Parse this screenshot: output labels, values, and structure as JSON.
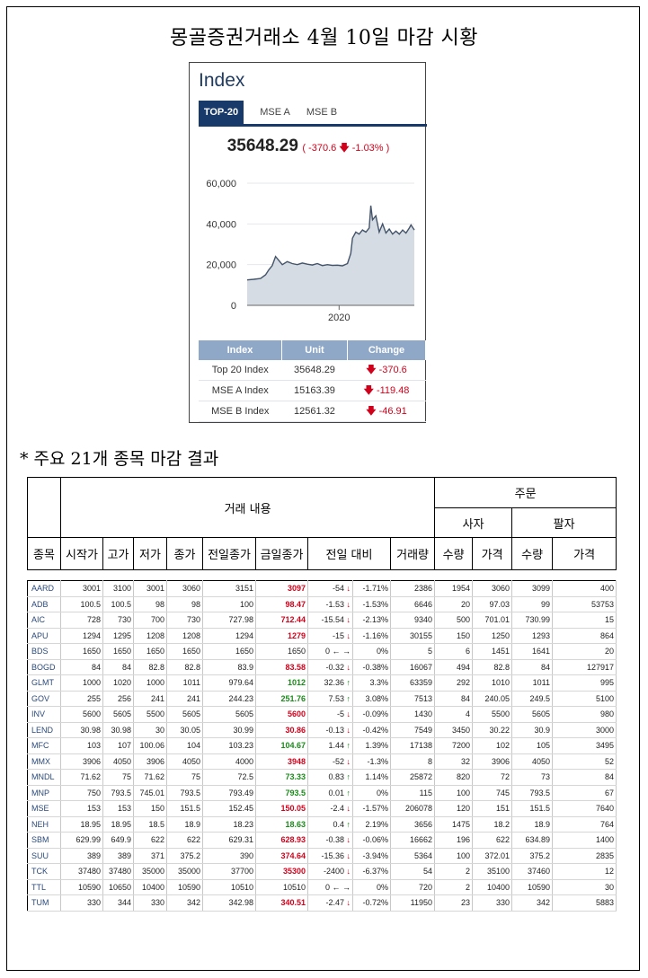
{
  "title": "몽골증권거래소 4월 10일 마감 시황",
  "widget": {
    "title": "Index",
    "tabs": [
      "TOP-20",
      "MSE A",
      "MSE B"
    ],
    "active_tab": "TOP-20",
    "index_value": "35648.29",
    "index_change": "( -370.6 ",
    "index_change_pct": " -1.03% )",
    "table_headers": [
      "Index",
      "Unit",
      "Change"
    ],
    "table_rows": [
      {
        "name": "Top 20 Index",
        "unit": "35648.29",
        "change": "-370.6"
      },
      {
        "name": "MSE A Index",
        "unit": "15163.39",
        "change": "-119.48"
      },
      {
        "name": "MSE B Index",
        "unit": "12561.32",
        "change": "-46.91"
      }
    ],
    "colors": {
      "accent": "#173a6b",
      "down": "#d0021b",
      "area": "#d5dce4",
      "line": "#44546a"
    }
  },
  "chart_data": {
    "type": "area",
    "ylim": [
      0,
      60000
    ],
    "yticks": [
      "60,000",
      "40,000",
      "20,000",
      "0"
    ],
    "ytick_values": [
      60000,
      40000,
      20000,
      0
    ],
    "xtick_label": "2020",
    "xtick_position": 0.55,
    "x_range": [
      0,
      1
    ],
    "x": [
      0,
      0.04,
      0.08,
      0.11,
      0.13,
      0.15,
      0.17,
      0.19,
      0.21,
      0.24,
      0.27,
      0.3,
      0.33,
      0.36,
      0.39,
      0.42,
      0.45,
      0.48,
      0.51,
      0.54,
      0.57,
      0.6,
      0.62,
      0.63,
      0.65,
      0.67,
      0.69,
      0.71,
      0.73,
      0.74,
      0.75,
      0.77,
      0.79,
      0.81,
      0.83,
      0.85,
      0.87,
      0.89,
      0.91,
      0.93,
      0.95,
      0.97,
      0.98,
      1.0
    ],
    "y": [
      12500,
      12800,
      13200,
      15000,
      17500,
      19500,
      24000,
      22000,
      20000,
      21500,
      20500,
      20000,
      20800,
      20200,
      19800,
      20500,
      19500,
      20000,
      19600,
      19700,
      19400,
      20500,
      25500,
      33000,
      36000,
      35000,
      37000,
      36000,
      38000,
      49000,
      42000,
      44000,
      36000,
      40000,
      35500,
      37500,
      35000,
      36500,
      35000,
      37000,
      35500,
      38000,
      39500,
      37000
    ]
  },
  "sub_title": "* 주요 21개 종목 마감 결과",
  "header": {
    "group_trade": "거래 내용",
    "group_order": "주문",
    "buyer": "사자",
    "seller": "팔자",
    "columns": [
      "종목",
      "시작가",
      "고가",
      "저가",
      "종가",
      "전일종가",
      "금일종가",
      "전일 대비",
      "거래량",
      "수량",
      "가격",
      "수량",
      "가격"
    ]
  },
  "stocks": [
    {
      "code": "AARD",
      "open": "3001",
      "high": "3100",
      "low": "3001",
      "close": "3060",
      "prev": "3151",
      "today": "3097",
      "chg": "-54",
      "dir": "down",
      "pct": "-1.71%",
      "vol": "2386",
      "bq": "1954",
      "bp": "3060",
      "sq": "3099",
      "sp": "400"
    },
    {
      "code": "ADB",
      "open": "100.5",
      "high": "100.5",
      "low": "98",
      "close": "98",
      "prev": "100",
      "today": "98.47",
      "chg": "-1.53",
      "dir": "down",
      "pct": "-1.53%",
      "vol": "6646",
      "bq": "20",
      "bp": "97.03",
      "sq": "99",
      "sp": "53753"
    },
    {
      "code": "AIC",
      "open": "728",
      "high": "730",
      "low": "700",
      "close": "730",
      "prev": "727.98",
      "today": "712.44",
      "chg": "-15.54",
      "dir": "down",
      "pct": "-2.13%",
      "vol": "9340",
      "bq": "500",
      "bp": "701.01",
      "sq": "730.99",
      "sp": "15"
    },
    {
      "code": "APU",
      "open": "1294",
      "high": "1295",
      "low": "1208",
      "close": "1208",
      "prev": "1294",
      "today": "1279",
      "chg": "-15",
      "dir": "down",
      "pct": "-1.16%",
      "vol": "30155",
      "bq": "150",
      "bp": "1250",
      "sq": "1293",
      "sp": "864"
    },
    {
      "code": "BDS",
      "open": "1650",
      "high": "1650",
      "low": "1650",
      "close": "1650",
      "prev": "1650",
      "today": "1650",
      "chg": "0",
      "dir": "flat",
      "pct": "0%",
      "vol": "5",
      "bq": "6",
      "bp": "1451",
      "sq": "1641",
      "sp": "20"
    },
    {
      "code": "BOGD",
      "open": "84",
      "high": "84",
      "low": "82.8",
      "close": "82.8",
      "prev": "83.9",
      "today": "83.58",
      "chg": "-0.32",
      "dir": "down",
      "pct": "-0.38%",
      "vol": "16067",
      "bq": "494",
      "bp": "82.8",
      "sq": "84",
      "sp": "127917"
    },
    {
      "code": "GLMT",
      "open": "1000",
      "high": "1020",
      "low": "1000",
      "close": "1011",
      "prev": "979.64",
      "today": "1012",
      "chg": "32.36",
      "dir": "up",
      "pct": "3.3%",
      "vol": "63359",
      "bq": "292",
      "bp": "1010",
      "sq": "1011",
      "sp": "995"
    },
    {
      "code": "GOV",
      "open": "255",
      "high": "256",
      "low": "241",
      "close": "241",
      "prev": "244.23",
      "today": "251.76",
      "chg": "7.53",
      "dir": "up",
      "pct": "3.08%",
      "vol": "7513",
      "bq": "84",
      "bp": "240.05",
      "sq": "249.5",
      "sp": "5100"
    },
    {
      "code": "INV",
      "open": "5600",
      "high": "5605",
      "low": "5500",
      "close": "5605",
      "prev": "5605",
      "today": "5600",
      "chg": "-5",
      "dir": "down",
      "pct": "-0.09%",
      "vol": "1430",
      "bq": "4",
      "bp": "5500",
      "sq": "5605",
      "sp": "980"
    },
    {
      "code": "LEND",
      "open": "30.98",
      "high": "30.98",
      "low": "30",
      "close": "30.05",
      "prev": "30.99",
      "today": "30.86",
      "chg": "-0.13",
      "dir": "down",
      "pct": "-0.42%",
      "vol": "7549",
      "bq": "3450",
      "bp": "30.22",
      "sq": "30.9",
      "sp": "3000"
    },
    {
      "code": "MFC",
      "open": "103",
      "high": "107",
      "low": "100.06",
      "close": "104",
      "prev": "103.23",
      "today": "104.67",
      "chg": "1.44",
      "dir": "up",
      "pct": "1.39%",
      "vol": "17138",
      "bq": "7200",
      "bp": "102",
      "sq": "105",
      "sp": "3495"
    },
    {
      "code": "MMX",
      "open": "3906",
      "high": "4050",
      "low": "3906",
      "close": "4050",
      "prev": "4000",
      "today": "3948",
      "chg": "-52",
      "dir": "down",
      "pct": "-1.3%",
      "vol": "8",
      "bq": "32",
      "bp": "3906",
      "sq": "4050",
      "sp": "52"
    },
    {
      "code": "MNDL",
      "open": "71.62",
      "high": "75",
      "low": "71.62",
      "close": "75",
      "prev": "72.5",
      "today": "73.33",
      "chg": "0.83",
      "dir": "up",
      "pct": "1.14%",
      "vol": "25872",
      "bq": "820",
      "bp": "72",
      "sq": "73",
      "sp": "84"
    },
    {
      "code": "MNP",
      "open": "750",
      "high": "793.5",
      "low": "745.01",
      "close": "793.5",
      "prev": "793.49",
      "today": "793.5",
      "chg": "0.01",
      "dir": "up",
      "pct": "0%",
      "vol": "115",
      "bq": "100",
      "bp": "745",
      "sq": "793.5",
      "sp": "67"
    },
    {
      "code": "MSE",
      "open": "153",
      "high": "153",
      "low": "150",
      "close": "151.5",
      "prev": "152.45",
      "today": "150.05",
      "chg": "-2.4",
      "dir": "down",
      "pct": "-1.57%",
      "vol": "206078",
      "bq": "120",
      "bp": "151",
      "sq": "151.5",
      "sp": "7640"
    },
    {
      "code": "NEH",
      "open": "18.95",
      "high": "18.95",
      "low": "18.5",
      "close": "18.9",
      "prev": "18.23",
      "today": "18.63",
      "chg": "0.4",
      "dir": "up",
      "pct": "2.19%",
      "vol": "3656",
      "bq": "1475",
      "bp": "18.2",
      "sq": "18.9",
      "sp": "764"
    },
    {
      "code": "SBM",
      "open": "629.99",
      "high": "649.9",
      "low": "622",
      "close": "622",
      "prev": "629.31",
      "today": "628.93",
      "chg": "-0.38",
      "dir": "down",
      "pct": "-0.06%",
      "vol": "16662",
      "bq": "196",
      "bp": "622",
      "sq": "634.89",
      "sp": "1400"
    },
    {
      "code": "SUU",
      "open": "389",
      "high": "389",
      "low": "371",
      "close": "375.2",
      "prev": "390",
      "today": "374.64",
      "chg": "-15.36",
      "dir": "down",
      "pct": "-3.94%",
      "vol": "5364",
      "bq": "100",
      "bp": "372.01",
      "sq": "375.2",
      "sp": "2835"
    },
    {
      "code": "TCK",
      "open": "37480",
      "high": "37480",
      "low": "35000",
      "close": "35000",
      "prev": "37700",
      "today": "35300",
      "chg": "-2400",
      "dir": "down",
      "pct": "-6.37%",
      "vol": "54",
      "bq": "2",
      "bp": "35100",
      "sq": "37460",
      "sp": "12"
    },
    {
      "code": "TTL",
      "open": "10590",
      "high": "10650",
      "low": "10400",
      "close": "10590",
      "prev": "10510",
      "today": "10510",
      "chg": "0",
      "dir": "flat",
      "pct": "0%",
      "vol": "720",
      "bq": "2",
      "bp": "10400",
      "sq": "10590",
      "sp": "30"
    },
    {
      "code": "TUM",
      "open": "330",
      "high": "344",
      "low": "330",
      "close": "342",
      "prev": "342.98",
      "today": "340.51",
      "chg": "-2.47",
      "dir": "down",
      "pct": "-0.72%",
      "vol": "11950",
      "bq": "23",
      "bp": "330",
      "sq": "342",
      "sp": "5883"
    }
  ]
}
